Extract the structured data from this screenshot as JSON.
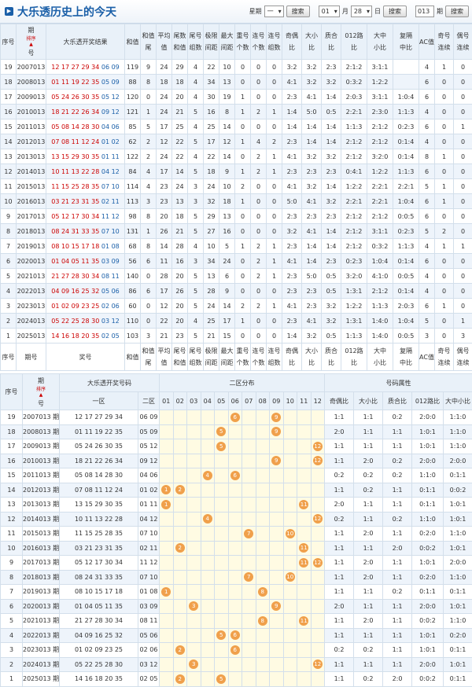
{
  "header": {
    "title": "大乐透历史上的今天",
    "weekday_label": "星期",
    "weekday": "一",
    "month": "01",
    "month_label": "月",
    "day": "28",
    "day_label": "日",
    "issue": "013",
    "issue_label": "期",
    "buttons": [
      "搜索",
      "搜索",
      "搜索"
    ]
  },
  "table1": {
    "sort_label": "排序",
    "headers": [
      [
        "序号"
      ],
      [
        "期",
        "号"
      ],
      [
        "大乐透开奖结果"
      ],
      [
        "和值"
      ],
      [
        "和值",
        "尾"
      ],
      [
        "平均",
        "值"
      ],
      [
        "尾数",
        "和值"
      ],
      [
        "尾号",
        "组数"
      ],
      [
        "极限",
        "间距"
      ],
      [
        "最大",
        "间距"
      ],
      [
        "重号",
        "个数"
      ],
      [
        "连号",
        "个数"
      ],
      [
        "连号",
        "组数"
      ],
      [
        "奇偶",
        "比"
      ],
      [
        "大小",
        "比"
      ],
      [
        "质合",
        "比"
      ],
      [
        "012路",
        "比"
      ],
      [
        "大中",
        "小比"
      ],
      [
        "复隔",
        "中比"
      ],
      [
        "AC值"
      ],
      [
        "奇号",
        "连续"
      ],
      [
        "偶号",
        "连续"
      ]
    ],
    "footer": [
      [
        "序号"
      ],
      [
        "期号"
      ],
      [
        "奖号"
      ],
      [
        "和值"
      ],
      [
        "和值",
        "尾"
      ],
      [
        "平均",
        "值"
      ],
      [
        "尾号",
        "和值"
      ],
      [
        "尾号",
        "组数"
      ],
      [
        "极限",
        "间距"
      ],
      [
        "最大",
        "间距"
      ],
      [
        "重号",
        "个数"
      ],
      [
        "连号",
        "个数"
      ],
      [
        "连号",
        "组数"
      ],
      [
        "奇偶",
        "比"
      ],
      [
        "大小",
        "比"
      ],
      [
        "质合",
        "比"
      ],
      [
        "012路",
        "比"
      ],
      [
        "大中",
        "小比"
      ],
      [
        "复隔",
        "中比"
      ],
      [
        "AC值"
      ],
      [
        "奇号",
        "连续"
      ],
      [
        "偶号",
        "连续"
      ]
    ],
    "rows": [
      {
        "seq": 19,
        "issue": "2007013",
        "front": "12 17 27 29 34",
        "back": "06 09",
        "stats": [
          119,
          9,
          24,
          29,
          4,
          22,
          10,
          0,
          0,
          0,
          "3:2",
          "3:2",
          "2:3",
          "2:1:2",
          "3:1:1",
          null,
          4,
          1,
          0
        ]
      },
      {
        "seq": 18,
        "issue": "2008013",
        "front": "01 11 19 22 35",
        "back": "05 09",
        "stats": [
          88,
          8,
          18,
          18,
          4,
          34,
          13,
          0,
          0,
          0,
          "4:1",
          "3:2",
          "3:2",
          "0:3:2",
          "1:2:2",
          null,
          6,
          0,
          0
        ]
      },
      {
        "seq": 17,
        "issue": "2009013",
        "front": "05 24 26 30 35",
        "back": "05 12",
        "stats": [
          120,
          0,
          24,
          20,
          4,
          30,
          19,
          1,
          0,
          0,
          "2:3",
          "4:1",
          "1:4",
          "2:0:3",
          "3:1:1",
          "1:0:4",
          6,
          0,
          0
        ]
      },
      {
        "seq": 16,
        "issue": "2010013",
        "front": "18 21 22 26 34",
        "back": "09 12",
        "stats": [
          121,
          1,
          24,
          21,
          5,
          16,
          8,
          1,
          2,
          1,
          "1:4",
          "5:0",
          "0:5",
          "2:2:1",
          "2:3:0",
          "1:1:3",
          4,
          0,
          0
        ]
      },
      {
        "seq": 15,
        "issue": "2011013",
        "front": "05 08 14 28 30",
        "back": "04 06",
        "stats": [
          85,
          5,
          17,
          25,
          4,
          25,
          14,
          0,
          0,
          0,
          "1:4",
          "1:4",
          "1:4",
          "1:1:3",
          "2:1:2",
          "0:2:3",
          6,
          0,
          1
        ]
      },
      {
        "seq": 14,
        "issue": "2012013",
        "front": "07 08 11 12 24",
        "back": "01 02",
        "stats": [
          62,
          2,
          12,
          22,
          5,
          17,
          12,
          1,
          4,
          2,
          "2:3",
          "1:4",
          "1:4",
          "2:1:2",
          "2:1:2",
          "0:1:4",
          4,
          0,
          0
        ]
      },
      {
        "seq": 13,
        "issue": "2013013",
        "front": "13 15 29 30 35",
        "back": "01 11",
        "stats": [
          122,
          2,
          24,
          22,
          4,
          22,
          14,
          0,
          2,
          1,
          "4:1",
          "3:2",
          "3:2",
          "2:1:2",
          "3:2:0",
          "0:1:4",
          8,
          1,
          0
        ]
      },
      {
        "seq": 12,
        "issue": "2014013",
        "front": "10 11 13 22 28",
        "back": "04 12",
        "stats": [
          84,
          4,
          17,
          14,
          5,
          18,
          9,
          1,
          2,
          1,
          "2:3",
          "2:3",
          "2:3",
          "0:4:1",
          "1:2:2",
          "1:1:3",
          6,
          0,
          0
        ]
      },
      {
        "seq": 11,
        "issue": "2015013",
        "front": "11 15 25 28 35",
        "back": "07 10",
        "stats": [
          114,
          4,
          23,
          24,
          3,
          24,
          10,
          2,
          0,
          0,
          "4:1",
          "3:2",
          "1:4",
          "1:2:2",
          "2:2:1",
          "2:2:1",
          5,
          1,
          0
        ]
      },
      {
        "seq": 10,
        "issue": "2016013",
        "front": "03 21 23 31 35",
        "back": "02 11",
        "stats": [
          113,
          3,
          23,
          13,
          3,
          32,
          18,
          1,
          0,
          0,
          "5:0",
          "4:1",
          "3:2",
          "2:2:1",
          "2:2:1",
          "1:0:4",
          6,
          1,
          0
        ]
      },
      {
        "seq": 9,
        "issue": "2017013",
        "front": "05 12 17 30 34",
        "back": "11 12",
        "stats": [
          98,
          8,
          20,
          18,
          5,
          29,
          13,
          0,
          0,
          0,
          "2:3",
          "2:3",
          "2:3",
          "2:1:2",
          "2:1:2",
          "0:0:5",
          6,
          0,
          0
        ]
      },
      {
        "seq": 8,
        "issue": "2018013",
        "front": "08 24 31 33 35",
        "back": "07 10",
        "stats": [
          131,
          1,
          26,
          21,
          5,
          27,
          16,
          0,
          0,
          0,
          "3:2",
          "4:1",
          "1:4",
          "2:1:2",
          "3:1:1",
          "0:2:3",
          5,
          2,
          0
        ]
      },
      {
        "seq": 7,
        "issue": "2019013",
        "front": "08 10 15 17 18",
        "back": "01 08",
        "stats": [
          68,
          8,
          14,
          28,
          4,
          10,
          5,
          1,
          2,
          1,
          "2:3",
          "1:4",
          "1:4",
          "2:1:2",
          "0:3:2",
          "1:1:3",
          4,
          1,
          1
        ]
      },
      {
        "seq": 6,
        "issue": "2020013",
        "front": "01 04 05 11 35",
        "back": "03 09",
        "stats": [
          56,
          6,
          11,
          16,
          3,
          34,
          24,
          0,
          2,
          1,
          "4:1",
          "1:4",
          "2:3",
          "0:2:3",
          "1:0:4",
          "0:1:4",
          6,
          0,
          0
        ]
      },
      {
        "seq": 5,
        "issue": "2021013",
        "front": "21 27 28 30 34",
        "back": "08 11",
        "stats": [
          140,
          0,
          28,
          20,
          5,
          13,
          6,
          0,
          2,
          1,
          "2:3",
          "5:0",
          "0:5",
          "3:2:0",
          "4:1:0",
          "0:0:5",
          4,
          0,
          0
        ]
      },
      {
        "seq": 4,
        "issue": "2022013",
        "front": "04 09 16 25 32",
        "back": "05 06",
        "stats": [
          86,
          6,
          17,
          26,
          5,
          28,
          9,
          0,
          0,
          0,
          "2:3",
          "2:3",
          "0:5",
          "1:3:1",
          "2:1:2",
          "0:1:4",
          4,
          0,
          0
        ]
      },
      {
        "seq": 3,
        "issue": "2023013",
        "front": "01 02 09 23 25",
        "back": "02 06",
        "stats": [
          60,
          0,
          12,
          20,
          5,
          24,
          14,
          2,
          2,
          1,
          "4:1",
          "2:3",
          "3:2",
          "1:2:2",
          "1:1:3",
          "2:0:3",
          6,
          1,
          0
        ]
      },
      {
        "seq": 2,
        "issue": "2024013",
        "front": "05 22 25 28 30",
        "back": "03 12",
        "stats": [
          110,
          0,
          22,
          20,
          4,
          25,
          17,
          1,
          0,
          0,
          "2:3",
          "4:1",
          "3:2",
          "1:3:1",
          "1:4:0",
          "1:0:4",
          5,
          0,
          1
        ]
      },
      {
        "seq": 1,
        "issue": "2025013",
        "front": "14 16 18 20 35",
        "back": "02 05",
        "stats": [
          103,
          3,
          21,
          23,
          5,
          21,
          15,
          0,
          0,
          0,
          "1:4",
          "3:2",
          "0:5",
          "1:1:3",
          "1:4:0",
          "0:0:5",
          3,
          0,
          3
        ]
      }
    ]
  },
  "table2": {
    "seq_header": "序号",
    "issue_header": [
      "期",
      "号"
    ],
    "sort_label": "排序",
    "numbers_header": "大乐透开奖号码",
    "dist_header": "二区分布",
    "attr_header": "号码属性",
    "zone_headers": [
      "一区",
      "二区"
    ],
    "dist_columns": [
      "01",
      "02",
      "03",
      "04",
      "05",
      "06",
      "07",
      "08",
      "09",
      "10",
      "11",
      "12"
    ],
    "attr_headers": [
      "奇偶比",
      "大小比",
      "质合比",
      "012路比",
      "大中小比"
    ],
    "rows": [
      {
        "seq": 19,
        "issue": "2007013 期",
        "front": "12 17 27 29 34",
        "back": "06 09",
        "dist": [
          6,
          9
        ],
        "attrs": [
          "1:1",
          "1:1",
          "0:2",
          "2:0:0",
          "1:1:0"
        ]
      },
      {
        "seq": 18,
        "issue": "2008013 期",
        "front": "01 11 19 22 35",
        "back": "05 09",
        "dist": [
          5,
          9
        ],
        "attrs": [
          "2:0",
          "1:1",
          "1:1",
          "1:0:1",
          "1:1:0"
        ]
      },
      {
        "seq": 17,
        "issue": "2009013 期",
        "front": "05 24 26 30 35",
        "back": "05 12",
        "dist": [
          5,
          12
        ],
        "attrs": [
          "1:1",
          "1:1",
          "1:1",
          "1:0:1",
          "1:1:0"
        ]
      },
      {
        "seq": 16,
        "issue": "2010013 期",
        "front": "18 21 22 26 34",
        "back": "09 12",
        "dist": [
          9,
          12
        ],
        "attrs": [
          "1:1",
          "2:0",
          "0:2",
          "2:0:0",
          "2:0:0"
        ]
      },
      {
        "seq": 15,
        "issue": "2011013 期",
        "front": "05 08 14 28 30",
        "back": "04 06",
        "dist": [
          4,
          6
        ],
        "attrs": [
          "0:2",
          "0:2",
          "0:2",
          "1:1:0",
          "0:1:1"
        ]
      },
      {
        "seq": 14,
        "issue": "2012013 期",
        "front": "07 08 11 12 24",
        "back": "01 02",
        "dist": [
          1,
          2
        ],
        "attrs": [
          "1:1",
          "0:2",
          "1:1",
          "0:1:1",
          "0:0:2"
        ]
      },
      {
        "seq": 13,
        "issue": "2013013 期",
        "front": "13 15 29 30 35",
        "back": "01 11",
        "dist": [
          1,
          11
        ],
        "attrs": [
          "2:0",
          "1:1",
          "1:1",
          "0:1:1",
          "1:0:1"
        ]
      },
      {
        "seq": 12,
        "issue": "2014013 期",
        "front": "10 11 13 22 28",
        "back": "04 12",
        "dist": [
          4,
          12
        ],
        "attrs": [
          "0:2",
          "1:1",
          "0:2",
          "1:1:0",
          "1:0:1"
        ]
      },
      {
        "seq": 11,
        "issue": "2015013 期",
        "front": "11 15 25 28 35",
        "back": "07 10",
        "dist": [
          7,
          10
        ],
        "attrs": [
          "1:1",
          "2:0",
          "1:1",
          "0:2:0",
          "1:1:0"
        ]
      },
      {
        "seq": 10,
        "issue": "2016013 期",
        "front": "03 21 23 31 35",
        "back": "02 11",
        "dist": [
          2,
          11
        ],
        "attrs": [
          "1:1",
          "1:1",
          "2:0",
          "0:0:2",
          "1:0:1"
        ]
      },
      {
        "seq": 9,
        "issue": "2017013 期",
        "front": "05 12 17 30 34",
        "back": "11 12",
        "dist": [
          11,
          12
        ],
        "attrs": [
          "1:1",
          "2:0",
          "1:1",
          "1:0:1",
          "2:0:0"
        ]
      },
      {
        "seq": 8,
        "issue": "2018013 期",
        "front": "08 24 31 33 35",
        "back": "07 10",
        "dist": [
          7,
          10
        ],
        "attrs": [
          "1:1",
          "2:0",
          "1:1",
          "0:2:0",
          "1:1:0"
        ]
      },
      {
        "seq": 7,
        "issue": "2019013 期",
        "front": "08 10 15 17 18",
        "back": "01 08",
        "dist": [
          1,
          8
        ],
        "attrs": [
          "1:1",
          "1:1",
          "0:2",
          "0:1:1",
          "0:1:1"
        ]
      },
      {
        "seq": 6,
        "issue": "2020013 期",
        "front": "01 04 05 11 35",
        "back": "03 09",
        "dist": [
          3,
          9
        ],
        "attrs": [
          "2:0",
          "1:1",
          "1:1",
          "2:0:0",
          "1:0:1"
        ]
      },
      {
        "seq": 5,
        "issue": "2021013 期",
        "front": "21 27 28 30 34",
        "back": "08 11",
        "dist": [
          8,
          11
        ],
        "attrs": [
          "1:1",
          "2:0",
          "1:1",
          "0:0:2",
          "1:1:0"
        ]
      },
      {
        "seq": 4,
        "issue": "2022013 期",
        "front": "04 09 16 25 32",
        "back": "05 06",
        "dist": [
          5,
          6
        ],
        "attrs": [
          "1:1",
          "1:1",
          "1:1",
          "1:0:1",
          "0:2:0"
        ]
      },
      {
        "seq": 3,
        "issue": "2023013 期",
        "front": "01 02 09 23 25",
        "back": "02 06",
        "dist": [
          2,
          6
        ],
        "attrs": [
          "0:2",
          "0:2",
          "1:1",
          "1:0:1",
          "0:1:1"
        ]
      },
      {
        "seq": 2,
        "issue": "2024013 期",
        "front": "05 22 25 28 30",
        "back": "03 12",
        "dist": [
          3,
          12
        ],
        "attrs": [
          "1:1",
          "1:1",
          "1:1",
          "2:0:0",
          "1:0:1"
        ]
      },
      {
        "seq": 1,
        "issue": "2025013 期",
        "front": "14 16 18 20 35",
        "back": "02 05",
        "dist": [
          2,
          5
        ],
        "attrs": [
          "1:1",
          "0:2",
          "2:0",
          "0:0:2",
          "0:1:1"
        ]
      }
    ]
  }
}
